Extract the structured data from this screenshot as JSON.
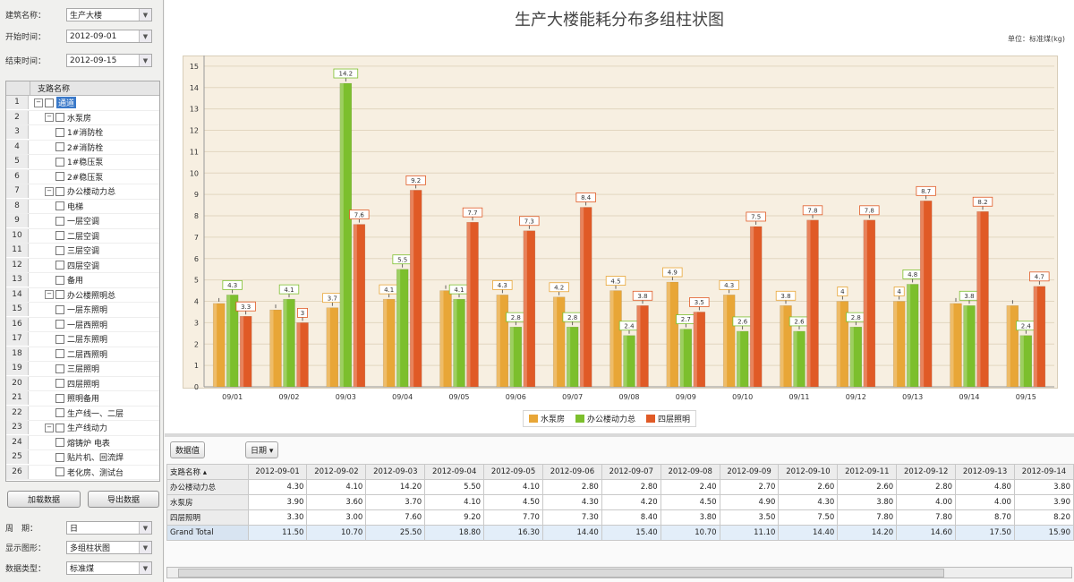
{
  "left_panel": {
    "fields": [
      {
        "label": "建筑名称：",
        "value": "生产大楼"
      },
      {
        "label": "开始时间：",
        "value": "2012-09-01"
      },
      {
        "label": "结束时间：",
        "value": "2012-09-15"
      }
    ],
    "tree_header": "支路名称",
    "tree_rows": [
      {
        "n": "1",
        "label": "通道",
        "level": 0,
        "expander": "−",
        "selected": true
      },
      {
        "n": "2",
        "label": "水泵房",
        "level": 1,
        "expander": "−"
      },
      {
        "n": "3",
        "label": "1#消防栓",
        "level": 2
      },
      {
        "n": "4",
        "label": "2#消防栓",
        "level": 2
      },
      {
        "n": "5",
        "label": "1#稳压泵",
        "level": 2
      },
      {
        "n": "6",
        "label": "2#稳压泵",
        "level": 2
      },
      {
        "n": "7",
        "label": "办公楼动力总",
        "level": 1,
        "expander": "−"
      },
      {
        "n": "8",
        "label": "电梯",
        "level": 2
      },
      {
        "n": "9",
        "label": "一层空调",
        "level": 2
      },
      {
        "n": "10",
        "label": "二层空调",
        "level": 2
      },
      {
        "n": "11",
        "label": "三层空调",
        "level": 2
      },
      {
        "n": "12",
        "label": "四层空调",
        "level": 2
      },
      {
        "n": "13",
        "label": "备用",
        "level": 2
      },
      {
        "n": "14",
        "label": "办公楼照明总",
        "level": 1,
        "expander": "−"
      },
      {
        "n": "15",
        "label": "一层东照明",
        "level": 2
      },
      {
        "n": "16",
        "label": "一层西照明",
        "level": 2
      },
      {
        "n": "17",
        "label": "二层东照明",
        "level": 2
      },
      {
        "n": "18",
        "label": "二层西照明",
        "level": 2
      },
      {
        "n": "19",
        "label": "三层照明",
        "level": 2
      },
      {
        "n": "20",
        "label": "四层照明",
        "level": 2
      },
      {
        "n": "21",
        "label": "照明备用",
        "level": 2
      },
      {
        "n": "22",
        "label": "生产线一、二层",
        "level": 2
      },
      {
        "n": "23",
        "label": "生产线动力",
        "level": 1,
        "expander": "−"
      },
      {
        "n": "24",
        "label": "熔铸炉 电表",
        "level": 2
      },
      {
        "n": "25",
        "label": "贴片机、回流焊",
        "level": 2
      },
      {
        "n": "26",
        "label": "老化房、测试台",
        "level": 2
      }
    ],
    "load_button": "加载数据",
    "export_button": "导出数据",
    "bottom_fields": [
      {
        "label": "周　期：",
        "value": "日"
      },
      {
        "label": "显示图形：",
        "value": "多组柱状图"
      },
      {
        "label": "数据类型：",
        "value": "标准煤"
      }
    ]
  },
  "chart_data": {
    "type": "bar",
    "title": "生产大楼能耗分布多组柱状图",
    "unit_label": "单位：标准煤(kg)",
    "categories": [
      "09/01",
      "09/02",
      "09/03",
      "09/04",
      "09/05",
      "09/06",
      "09/07",
      "09/08",
      "09/09",
      "09/10",
      "09/11",
      "09/12",
      "09/13",
      "09/14",
      "09/15"
    ],
    "ylim": [
      0,
      15.5
    ],
    "yticks": [
      0,
      1,
      2,
      3,
      4,
      5,
      6,
      7,
      8,
      9,
      10,
      11,
      12,
      13,
      14,
      15
    ],
    "grid": true,
    "legend_position": "bottom",
    "series": [
      {
        "name": "水泵房",
        "color": "#e8a637",
        "values": [
          3.9,
          3.6,
          3.7,
          4.1,
          4.5,
          4.3,
          4.2,
          4.5,
          4.9,
          4.3,
          3.8,
          4.0,
          4.0,
          3.9,
          3.8
        ],
        "labels": [
          "",
          "",
          "3.7",
          "4.1",
          "",
          "4.3",
          "4.2",
          "4.5",
          "4.9",
          "4.3",
          "3.8",
          "4",
          "4",
          "",
          ""
        ]
      },
      {
        "name": "办公楼动力总",
        "color": "#7cbf2d",
        "values": [
          4.3,
          4.1,
          14.2,
          5.5,
          4.1,
          2.8,
          2.8,
          2.4,
          2.7,
          2.6,
          2.6,
          2.8,
          4.8,
          3.8,
          2.4
        ],
        "labels": [
          "4.3",
          "4.1",
          "14.2",
          "5.5",
          "4.1",
          "2.8",
          "2.8",
          "2.4",
          "2.7",
          "2.6",
          "2.6",
          "2.8",
          "4.8",
          "3.8",
          "2.4"
        ]
      },
      {
        "name": "四层照明",
        "color": "#e05a26",
        "values": [
          3.3,
          3.0,
          7.6,
          9.2,
          7.7,
          7.3,
          8.4,
          3.8,
          3.5,
          7.5,
          7.8,
          7.8,
          8.7,
          8.2,
          4.7
        ],
        "labels": [
          "3.3",
          "3",
          "7.6",
          "9.2",
          "7.7",
          "7.3",
          "8.4",
          "3.8",
          "3.5",
          "7.5",
          "7.8",
          "7.8",
          "8.7",
          "8.2",
          "4.7"
        ]
      }
    ]
  },
  "grid": {
    "field_button": "数据值",
    "date_button": "日期 ▾",
    "row_header": "支路名称 ▴",
    "columns": [
      "2012-09-01",
      "2012-09-02",
      "2012-09-03",
      "2012-09-04",
      "2012-09-05",
      "2012-09-06",
      "2012-09-07",
      "2012-09-08",
      "2012-09-09",
      "2012-09-10",
      "2012-09-11",
      "2012-09-12",
      "2012-09-13",
      "2012-09-14"
    ],
    "rows": [
      {
        "name": "办公楼动力总",
        "values": [
          "4.30",
          "4.10",
          "14.20",
          "5.50",
          "4.10",
          "2.80",
          "2.80",
          "2.40",
          "2.70",
          "2.60",
          "2.60",
          "2.80",
          "4.80",
          "3.80"
        ]
      },
      {
        "name": "水泵房",
        "values": [
          "3.90",
          "3.60",
          "3.70",
          "4.10",
          "4.50",
          "4.30",
          "4.20",
          "4.50",
          "4.90",
          "4.30",
          "3.80",
          "4.00",
          "4.00",
          "3.90"
        ]
      },
      {
        "name": "四层照明",
        "values": [
          "3.30",
          "3.00",
          "7.60",
          "9.20",
          "7.70",
          "7.30",
          "8.40",
          "3.80",
          "3.50",
          "7.50",
          "7.80",
          "7.80",
          "8.70",
          "8.20"
        ]
      },
      {
        "name": "Grand Total",
        "values": [
          "11.50",
          "10.70",
          "25.50",
          "18.80",
          "16.30",
          "14.40",
          "15.40",
          "10.70",
          "11.10",
          "14.40",
          "14.20",
          "14.60",
          "17.50",
          "15.90"
        ]
      }
    ]
  }
}
